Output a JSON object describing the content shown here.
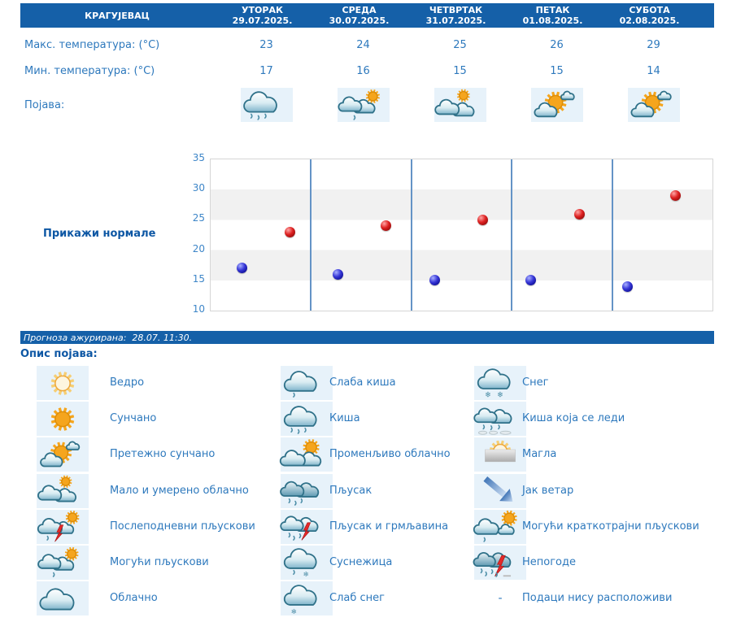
{
  "location": "КРАГУЈЕВАЦ",
  "table": {
    "row_labels": {
      "max": "Макс. температура: (°C)",
      "min": "Мин. температура: (°C)",
      "phenomenon": "Појава:"
    },
    "days": [
      {
        "name": "УТОРАК",
        "date": "29.07.2025.",
        "max": 23,
        "min": 17,
        "icon": "rain"
      },
      {
        "name": "СРЕДА",
        "date": "30.07.2025.",
        "max": 24,
        "min": 16,
        "icon": "possible-showers"
      },
      {
        "name": "ЧЕТВРТАК",
        "date": "31.07.2025.",
        "max": 25,
        "min": 15,
        "icon": "partly-cloudy"
      },
      {
        "name": "ПЕТАК",
        "date": "01.08.2025.",
        "max": 26,
        "min": 15,
        "icon": "mostly-sunny"
      },
      {
        "name": "СУБОТА",
        "date": "02.08.2025.",
        "max": 29,
        "min": 14,
        "icon": "mostly-sunny"
      }
    ]
  },
  "chart": {
    "link_label": "Прикажи нормале"
  },
  "chart_data": {
    "type": "scatter",
    "categories": [
      "УТОРАК 29.07.2025.",
      "СРЕДА 30.07.2025.",
      "ЧЕТВРТАК 31.07.2025.",
      "ПЕТАК 01.08.2025.",
      "СУБОТА 02.08.2025."
    ],
    "series": [
      {
        "name": "Макс. температура (°C)",
        "color": "#D31717",
        "values": [
          23,
          24,
          25,
          26,
          29
        ]
      },
      {
        "name": "Мин. температура (°C)",
        "color": "#2121CC",
        "values": [
          17,
          16,
          15,
          15,
          14
        ]
      }
    ],
    "ylim": [
      10,
      35
    ],
    "yticks": [
      10,
      15,
      20,
      25,
      30,
      35
    ],
    "grid": "alternating horizontal gray bands; vertical blue day separators",
    "legend_position": "none"
  },
  "status_bar": "Прогноза ажурирана:  28.07. 11:30.",
  "legend": {
    "title": "Опис појава:",
    "no_data_symbol": "-",
    "columns": [
      [
        {
          "icon": "clear",
          "label": "Ведро"
        },
        {
          "icon": "sunny",
          "label": "Сунчано"
        },
        {
          "icon": "mostly-sunny",
          "label": "Претежно сунчано"
        },
        {
          "icon": "partly-cloudy",
          "label": "Мало и умерено облачно"
        },
        {
          "icon": "afternoon-showers",
          "label": "Послеподневни пљускови"
        },
        {
          "icon": "possible-showers",
          "label": "Могући пљускови"
        },
        {
          "icon": "cloudy",
          "label": "Облачно"
        }
      ],
      [
        {
          "icon": "light-rain",
          "label": "Слаба киша"
        },
        {
          "icon": "rain",
          "label": "Киша"
        },
        {
          "icon": "variable-cloudy",
          "label": "Променљиво облачно"
        },
        {
          "icon": "heavy-showers",
          "label": "Пљусак"
        },
        {
          "icon": "thunderstorm",
          "label": "Пљусак и грмљавина"
        },
        {
          "icon": "sleet",
          "label": "Суснежица"
        },
        {
          "icon": "light-snow",
          "label": "Слаб снег"
        }
      ],
      [
        {
          "icon": "snow",
          "label": "Снег"
        },
        {
          "icon": "freezing-rain",
          "label": "Киша која се леди"
        },
        {
          "icon": "fog",
          "label": "Магла"
        },
        {
          "icon": "strong-wind",
          "label": "Јак ветар"
        },
        {
          "icon": "short-showers",
          "label": "Могући краткотрајни пљускови"
        },
        {
          "icon": "storms",
          "label": "Непогоде"
        },
        {
          "icon": "none",
          "label": "Подаци нису расположиви"
        }
      ]
    ]
  },
  "colors": {
    "header_bg": "#1560A8",
    "text_blue": "#2E79BD",
    "title_blue": "#0D57A4",
    "icon_cell_bg": "#E7F2FA",
    "band_gray": "#F1F1F1",
    "separator_blue": "#6493C6",
    "dot_max": "#D31717",
    "dot_min": "#2121CC",
    "axis_label": "#3E86C8"
  }
}
